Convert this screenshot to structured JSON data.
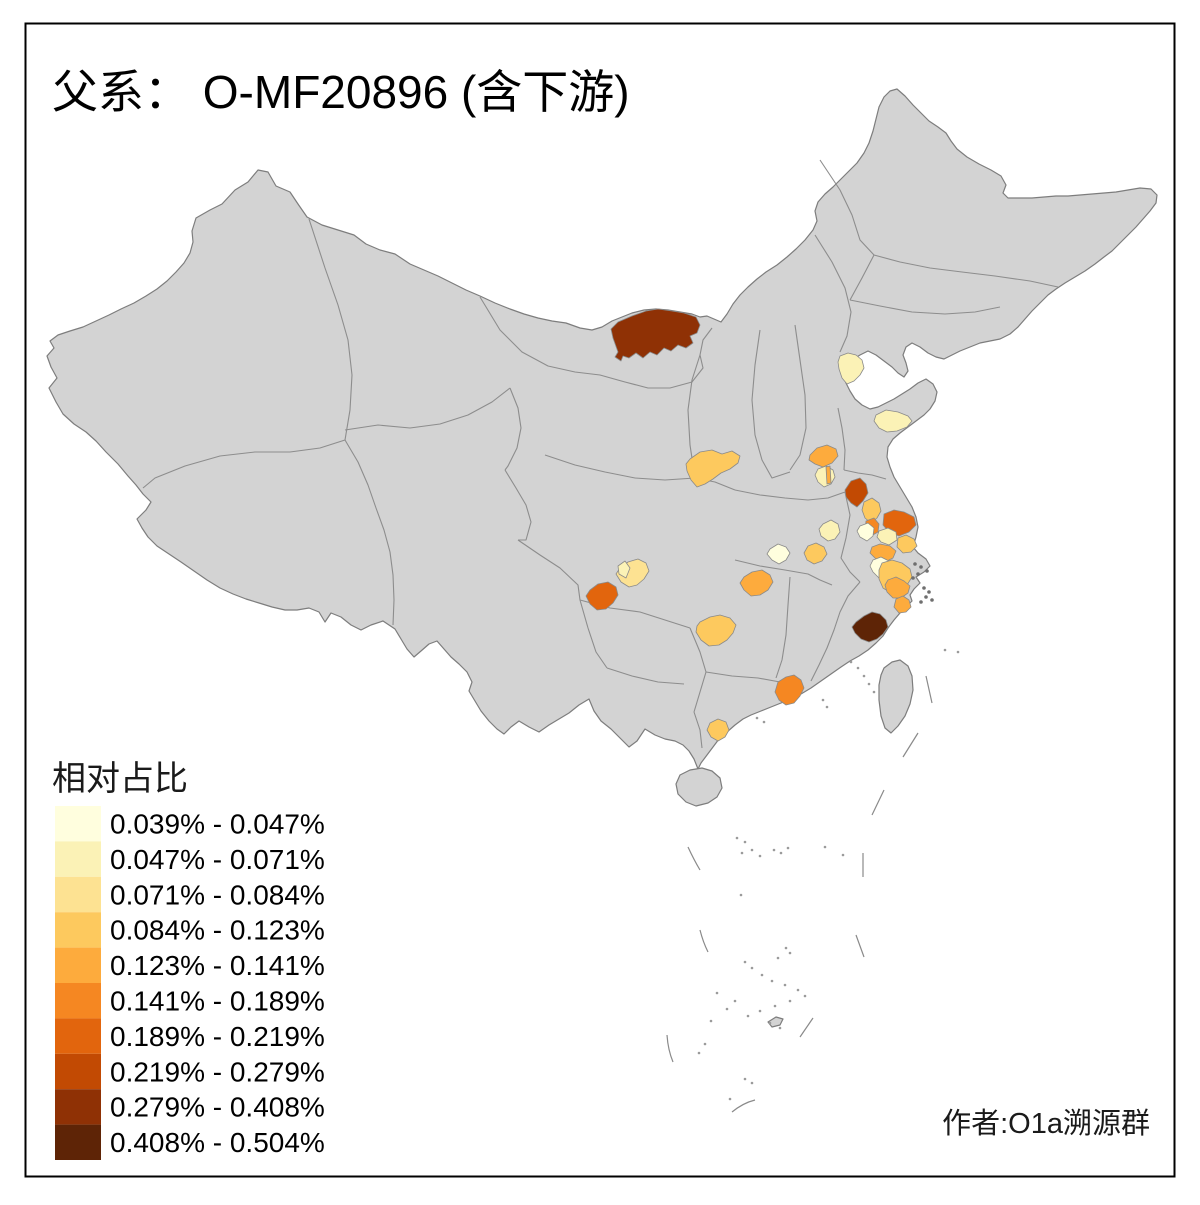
{
  "title": "父系： O-MF20896 (含下游)",
  "author": "作者:O1a溯源群",
  "legend": {
    "title": "相对占比",
    "bins": [
      {
        "label": "0.039% - 0.047%",
        "color": "#FFFEDE"
      },
      {
        "label": "0.047% - 0.071%",
        "color": "#FBF2B6"
      },
      {
        "label": "0.071% - 0.084%",
        "color": "#FDE292"
      },
      {
        "label": "0.084% - 0.123%",
        "color": "#FDC95E"
      },
      {
        "label": "0.123% - 0.141%",
        "color": "#FDAB3D"
      },
      {
        "label": "0.141% - 0.189%",
        "color": "#F58722"
      },
      {
        "label": "0.189% - 0.219%",
        "color": "#E2650D"
      },
      {
        "label": "0.219% - 0.279%",
        "color": "#C24A03"
      },
      {
        "label": "0.279% - 0.408%",
        "color": "#8F3105"
      },
      {
        "label": "0.408% - 0.504%",
        "color": "#5E2406"
      }
    ]
  },
  "map": {
    "land_color": "#D3D3D3",
    "border_color": "#7D7D7D",
    "sea_color": "#FFFFFF",
    "frame_color": "#000000",
    "regions": [
      {
        "id": "r1",
        "bin": 9
      },
      {
        "id": "r2",
        "bin": 2
      },
      {
        "id": "r3",
        "bin": 2
      },
      {
        "id": "r4",
        "bin": 4
      },
      {
        "id": "r5",
        "bin": 5
      },
      {
        "id": "r6",
        "bin": 2
      },
      {
        "id": "r7",
        "bin": 5
      },
      {
        "id": "r8",
        "bin": 8
      },
      {
        "id": "r9",
        "bin": 4
      },
      {
        "id": "r10",
        "bin": 6
      },
      {
        "id": "r11",
        "bin": 7
      },
      {
        "id": "r12",
        "bin": 1
      },
      {
        "id": "r13",
        "bin": 2
      },
      {
        "id": "r14",
        "bin": 4
      },
      {
        "id": "r15",
        "bin": 5
      },
      {
        "id": "r16",
        "bin": 1
      },
      {
        "id": "r17",
        "bin": 4
      },
      {
        "id": "r18",
        "bin": 5
      },
      {
        "id": "r19",
        "bin": 5
      },
      {
        "id": "r20",
        "bin": 10
      },
      {
        "id": "r21",
        "bin": 1
      },
      {
        "id": "r22",
        "bin": 2
      },
      {
        "id": "r23",
        "bin": 4
      },
      {
        "id": "r24",
        "bin": 5
      },
      {
        "id": "r25",
        "bin": 4
      },
      {
        "id": "r26",
        "bin": 3
      },
      {
        "id": "r27",
        "bin": 2
      },
      {
        "id": "r28",
        "bin": 7
      },
      {
        "id": "r29",
        "bin": 6
      },
      {
        "id": "r30",
        "bin": 4
      }
    ]
  }
}
